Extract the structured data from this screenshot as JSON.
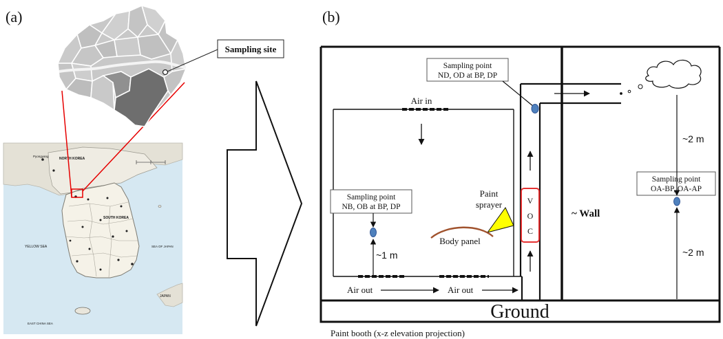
{
  "panel_a": {
    "label": "(a)",
    "callout": "Sampling site",
    "map_labels": {
      "north_korea": "NORTH KOREA",
      "south_korea": "SOUTH KOREA",
      "pyongyang": "Pyongyang",
      "yellow_sea": "YELLOW SEA",
      "sea_of_japan": "SEA OF JAPAN",
      "japan": "JAPAN",
      "east_china_sea": "EAST CHINA SEA"
    },
    "colors": {
      "district_light": "#c8c8c8",
      "district_dark": "#6e6e6e",
      "district_mid": "#909090",
      "sea": "#d6e8f2",
      "land": "#f5f2e8",
      "locator_red": "#e60000"
    }
  },
  "arrow": {
    "label": ""
  },
  "panel_b": {
    "label": "(b)",
    "sampling_points": {
      "duct": [
        "Sampling point",
        "ND, OD at BP, DP"
      ],
      "booth": [
        "Sampling point",
        "NB, OB at BP, DP"
      ],
      "outdoor": [
        "Sampling point",
        "OA-BP, OA-AP"
      ]
    },
    "air_in": "Air in",
    "air_out_left": "Air out",
    "air_out_right": "Air out",
    "paint_sprayer": [
      "Paint",
      "sprayer"
    ],
    "body_panel": "Body panel",
    "voc": [
      "V",
      "O",
      "C"
    ],
    "wall": "~ Wall",
    "height_booth": "~1 m",
    "height_outdoor_top": "~2 m",
    "height_outdoor_bottom": "~2 m",
    "ground": "Ground",
    "caption": "Paint booth (x-z elevation projection)",
    "colors": {
      "sample_dot": "#4f81bd",
      "sample_dot_edge": "#2f5597",
      "voc_box": "#e53030",
      "sprayer": "#ffff00",
      "body_panel": "#a0522d"
    }
  }
}
